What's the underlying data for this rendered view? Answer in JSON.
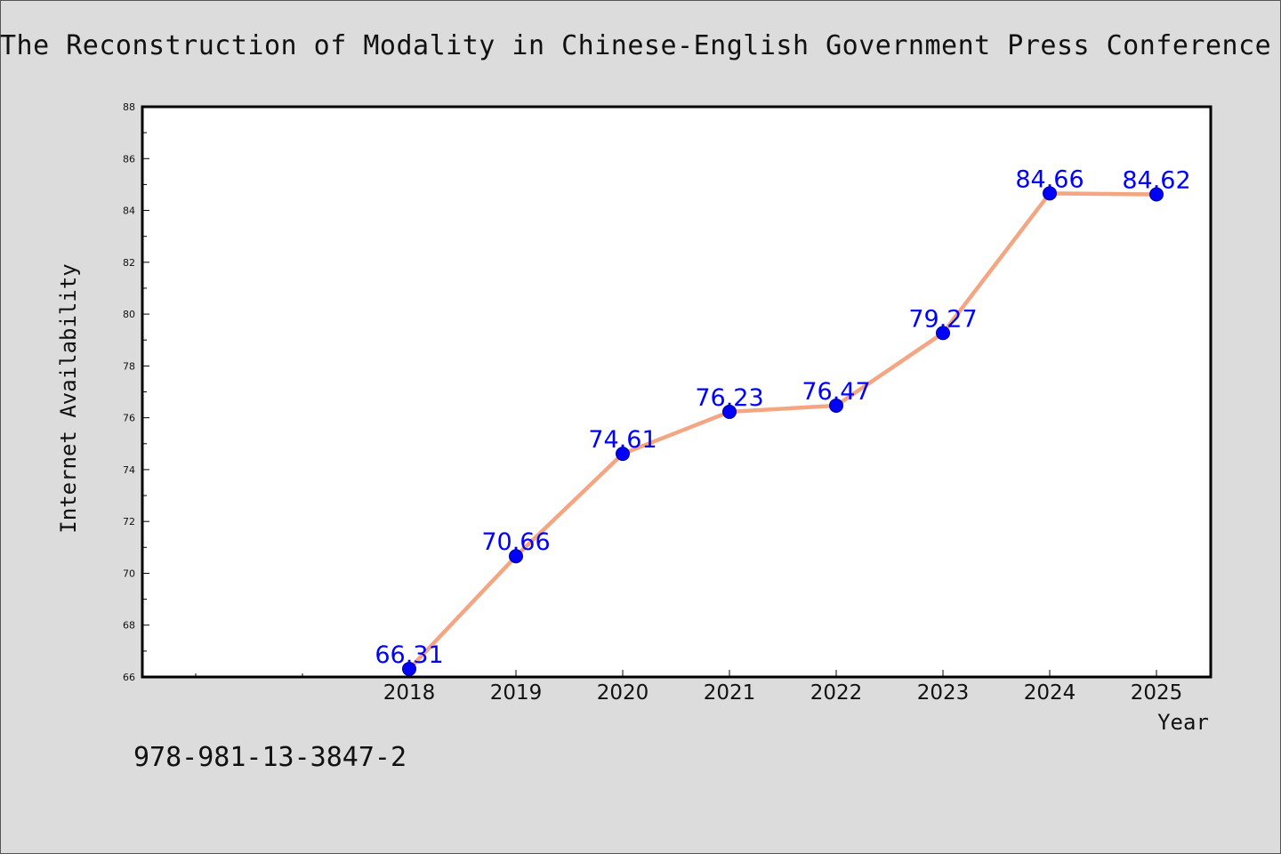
{
  "chart_data": {
    "type": "line",
    "title": "The Reconstruction of Modality in Chinese-English Government Press Conference In",
    "xlabel": "Year",
    "ylabel": "Internet Availability",
    "categories": [
      "2018",
      "2019",
      "2020",
      "2021",
      "2022",
      "2023",
      "2024",
      "2025"
    ],
    "series": [
      {
        "values": [
          66.31,
          70.66,
          74.61,
          76.23,
          76.47,
          79.27,
          84.66,
          84.62
        ]
      }
    ],
    "data_labels": [
      "66.31",
      "70.66",
      "74.61",
      "76.23",
      "76.47",
      "79.27",
      "84.66",
      "84.62"
    ],
    "ylim": [
      66,
      88
    ],
    "yticks": [
      66,
      68,
      70,
      72,
      74,
      76,
      78,
      80,
      82,
      84,
      86,
      88
    ],
    "grid": false,
    "legend": "none",
    "colors": {
      "line": "#f4a582",
      "marker": "#0000ff",
      "label": "#0000ff",
      "background": "#dcdcdc",
      "plot_bg": "#ffffff"
    }
  },
  "footer": {
    "isbn": "978-981-13-3847-2"
  }
}
